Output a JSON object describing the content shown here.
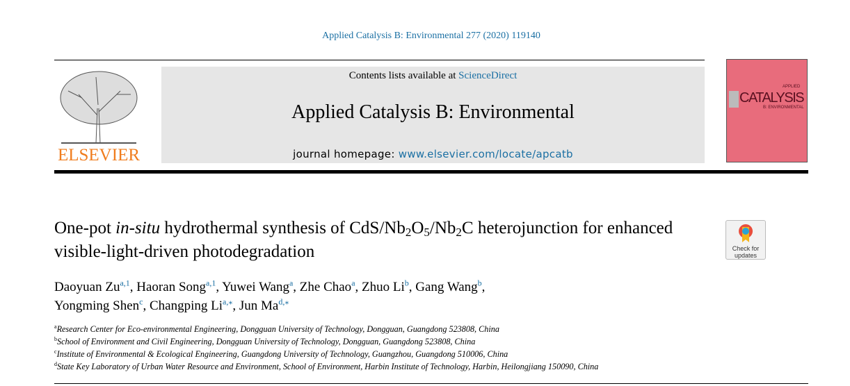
{
  "journal_ref": "Applied Catalysis B: Environmental 277 (2020) 119140",
  "banner": {
    "contents_prefix": "Contents lists available at ",
    "contents_link": "ScienceDirect",
    "journal_title": "Applied Catalysis B: Environmental",
    "homepage_prefix": "journal homepage: ",
    "homepage_url": "www.elsevier.com/locate/apcatb"
  },
  "publisher_logo": "ELSEVIER",
  "cover": {
    "title": "CATALYSIS",
    "top": "APPLIED",
    "sub": "B: ENVIRONMENTAL",
    "color": "#e86c7c"
  },
  "title": {
    "p1": "One-pot ",
    "p2": "in-situ",
    "p3": " hydrothermal synthesis of CdS/Nb",
    "s1": "2",
    "p4": "O",
    "s2": "5",
    "p5": "/Nb",
    "s3": "2",
    "p6": "C heterojunction for enhanced visible-light-driven photodegradation"
  },
  "check_updates": {
    "line1": "Check for",
    "line2": "updates"
  },
  "authors": [
    {
      "name": "Daoyuan Zu",
      "sup": "a,1",
      "sep": ", "
    },
    {
      "name": "Haoran Song",
      "sup": "a,1",
      "sep": ", "
    },
    {
      "name": "Yuwei Wang",
      "sup": "a",
      "sep": ", "
    },
    {
      "name": "Zhe Chao",
      "sup": "a",
      "sep": ", "
    },
    {
      "name": "Zhuo Li",
      "sup": "b",
      "sep": ", "
    },
    {
      "name": "Gang Wang",
      "sup": "b",
      "sep": ","
    },
    {
      "name": "Yongming Shen",
      "sup": "c",
      "sep": ", "
    },
    {
      "name": "Changping Li",
      "sup": "a,⁎",
      "sep": ", "
    },
    {
      "name": "Jun Ma",
      "sup": "d,⁎",
      "sep": ""
    }
  ],
  "affiliations": [
    {
      "key": "a",
      "text": "Research Center for Eco-environmental Engineering, Dongguan University of Technology, Dongguan, Guangdong 523808, China"
    },
    {
      "key": "b",
      "text": "School of Environment and Civil Engineering, Dongguan University of Technology, Dongguan, Guangdong 523808, China"
    },
    {
      "key": "c",
      "text": "Institute of Environmental & Ecological Engineering, Guangdong University of Technology, Guangzhou, Guangdong 510006, China"
    },
    {
      "key": "d",
      "text": "State Key Laboratory of Urban Water Resource and Environment, School of Environment, Harbin Institute of Technology, Harbin, Heilongjiang 150090, China"
    }
  ]
}
